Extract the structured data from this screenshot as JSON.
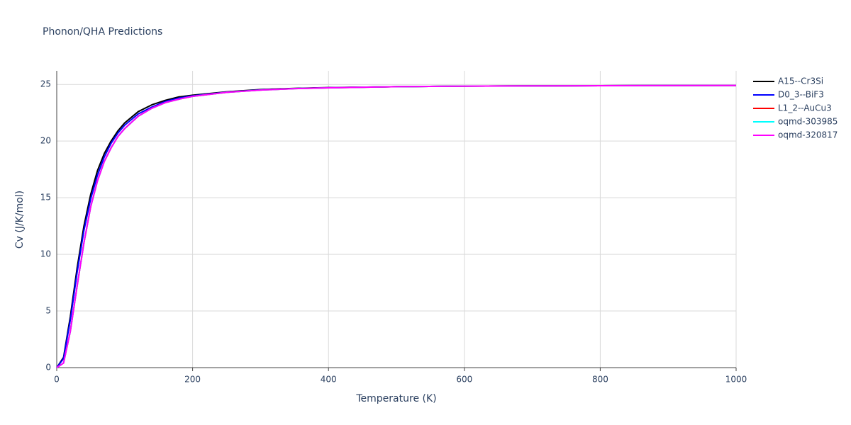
{
  "chart_data": {
    "type": "line",
    "title": "Phonon/QHA Predictions",
    "x_label": "Temperature (K)",
    "y_label": "Cv (J/K/mol)",
    "x": [
      0,
      10,
      20,
      30,
      40,
      50,
      60,
      70,
      80,
      90,
      100,
      120,
      140,
      160,
      180,
      200,
      250,
      300,
      350,
      400,
      500,
      600,
      700,
      800,
      900,
      1000
    ],
    "series": [
      {
        "name": "A15--Cr3Si",
        "color": "#000000",
        "values": [
          0,
          0.9,
          4.5,
          8.8,
          12.5,
          15.3,
          17.4,
          18.9,
          20.0,
          20.9,
          21.6,
          22.6,
          23.2,
          23.6,
          23.9,
          24.05,
          24.35,
          24.55,
          24.65,
          24.72,
          24.8,
          24.85,
          24.87,
          24.89,
          24.9,
          24.91
        ]
      },
      {
        "name": "D0_3--BiF3",
        "color": "#0000ff",
        "values": [
          0,
          0.8,
          4.2,
          8.4,
          12.1,
          14.9,
          17.0,
          18.6,
          19.8,
          20.7,
          21.4,
          22.4,
          23.0,
          23.5,
          23.8,
          24.0,
          24.32,
          24.52,
          24.64,
          24.71,
          24.8,
          24.85,
          24.87,
          24.89,
          24.9,
          24.91
        ]
      },
      {
        "name": "L1_2--AuCu3",
        "color": "#ff0000",
        "values": [
          0,
          0.4,
          3.2,
          7.2,
          11.0,
          14.2,
          16.5,
          18.2,
          19.4,
          20.4,
          21.1,
          22.2,
          22.9,
          23.4,
          23.7,
          23.95,
          24.3,
          24.5,
          24.63,
          24.7,
          24.8,
          24.85,
          24.87,
          24.89,
          24.9,
          24.91
        ]
      },
      {
        "name": "oqmd-303985",
        "color": "#00ffff",
        "values": [
          0,
          0.4,
          3.2,
          7.2,
          11.0,
          14.2,
          16.5,
          18.2,
          19.4,
          20.4,
          21.1,
          22.2,
          22.9,
          23.4,
          23.7,
          23.95,
          24.3,
          24.5,
          24.63,
          24.7,
          24.8,
          24.85,
          24.87,
          24.89,
          24.9,
          24.91
        ]
      },
      {
        "name": "oqmd-320817",
        "color": "#ff00ff",
        "values": [
          0,
          0.4,
          3.2,
          7.2,
          11.0,
          14.2,
          16.5,
          18.2,
          19.4,
          20.4,
          21.1,
          22.2,
          22.9,
          23.4,
          23.7,
          23.95,
          24.3,
          24.5,
          24.63,
          24.7,
          24.8,
          24.85,
          24.87,
          24.89,
          24.9,
          24.91
        ]
      }
    ],
    "xlim": [
      0,
      1000
    ],
    "xticks": [
      0,
      200,
      400,
      600,
      800,
      1000
    ],
    "ylim": [
      0,
      26.2
    ],
    "yticks": [
      0,
      5,
      10,
      15,
      20,
      25
    ],
    "grid": true,
    "legend": "right"
  }
}
